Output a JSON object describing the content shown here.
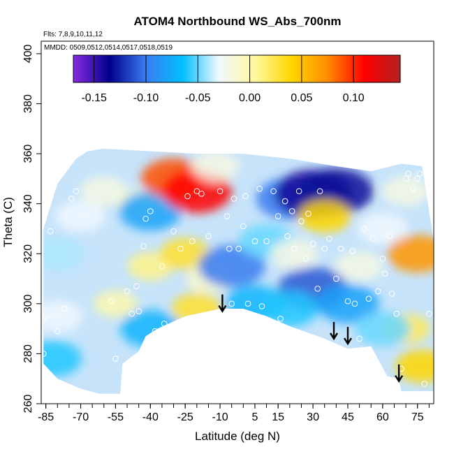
{
  "chart_data": {
    "type": "heatmap",
    "title": "ATOM4 Northbound WS_Abs_700nm",
    "annotations": [
      "Flts: 7,8,9,10,11,12",
      "MMDD: 0509,0512,0514,0517,0518,0519"
    ],
    "xlabel": "Latitude (deg N)",
    "ylabel": "Theta (C)",
    "xlim": [
      -87,
      82
    ],
    "ylim": [
      260,
      405
    ],
    "x_ticks": [
      -85,
      -70,
      -55,
      -40,
      -25,
      -10,
      5,
      15,
      30,
      45,
      60,
      75
    ],
    "y_ticks": [
      260,
      280,
      300,
      320,
      340,
      360,
      380,
      400
    ],
    "colorbar": {
      "range": [
        -0.17,
        0.145
      ],
      "ticks": [
        -0.15,
        -0.1,
        -0.05,
        0.0,
        0.05,
        0.1
      ],
      "tick_labels": [
        "-0.15",
        "-0.10",
        "-0.05",
        "0.00",
        "0.05",
        "0.10"
      ],
      "colors": [
        "#8a2be2",
        "#00008b",
        "#3a7cf0",
        "#00bfff",
        "#f0f8ff",
        "#fff8a0",
        "#ffd700",
        "#ff8c00",
        "#ff0000",
        "#b22222"
      ]
    },
    "field": [
      {
        "lat": -60,
        "theta": 345,
        "value": -0.02
      },
      {
        "lat": -70,
        "theta": 335,
        "value": -0.03
      },
      {
        "lat": -80,
        "theta": 320,
        "value": -0.04
      },
      {
        "lat": -80,
        "theta": 295,
        "value": -0.03
      },
      {
        "lat": -82,
        "theta": 278,
        "value": -0.06
      },
      {
        "lat": -55,
        "theta": 300,
        "value": 0.0
      },
      {
        "lat": -45,
        "theta": 340,
        "value": -0.01
      },
      {
        "lat": -40,
        "theta": 337,
        "value": -0.08
      },
      {
        "lat": -40,
        "theta": 315,
        "value": 0.01
      },
      {
        "lat": -40,
        "theta": 290,
        "value": -0.07
      },
      {
        "lat": -30,
        "theta": 350,
        "value": 0.09
      },
      {
        "lat": -20,
        "theta": 345,
        "value": 0.11
      },
      {
        "lat": -12,
        "theta": 355,
        "value": -0.02
      },
      {
        "lat": -25,
        "theta": 320,
        "value": 0.03
      },
      {
        "lat": -15,
        "theta": 310,
        "value": -0.01
      },
      {
        "lat": -5,
        "theta": 315,
        "value": -0.1
      },
      {
        "lat": 5,
        "theta": 300,
        "value": -0.07
      },
      {
        "lat": 10,
        "theta": 325,
        "value": -0.05
      },
      {
        "lat": 20,
        "theta": 342,
        "value": -0.1
      },
      {
        "lat": 30,
        "theta": 344,
        "value": -0.14
      },
      {
        "lat": 40,
        "theta": 345,
        "value": -0.13
      },
      {
        "lat": 35,
        "theta": 335,
        "value": 0.04
      },
      {
        "lat": 22,
        "theta": 320,
        "value": -0.02
      },
      {
        "lat": 30,
        "theta": 306,
        "value": -0.11
      },
      {
        "lat": 45,
        "theta": 300,
        "value": -0.08
      },
      {
        "lat": 50,
        "theta": 315,
        "value": -0.02
      },
      {
        "lat": 60,
        "theta": 330,
        "value": -0.03
      },
      {
        "lat": 70,
        "theta": 345,
        "value": -0.02
      },
      {
        "lat": 75,
        "theta": 320,
        "value": 0.07
      },
      {
        "lat": 70,
        "theta": 290,
        "value": 0.02
      },
      {
        "lat": 77,
        "theta": 275,
        "value": 0.04
      },
      {
        "lat": 60,
        "theta": 290,
        "value": -0.05
      },
      {
        "lat": 20,
        "theta": 298,
        "value": -0.06
      },
      {
        "lat": -20,
        "theta": 298,
        "value": 0.03
      }
    ],
    "observations": [
      {
        "lat": -86,
        "theta": 294
      },
      {
        "lat": -86,
        "theta": 280
      },
      {
        "lat": -83,
        "theta": 329
      },
      {
        "lat": -80,
        "theta": 289
      },
      {
        "lat": -77,
        "theta": 298
      },
      {
        "lat": -74,
        "theta": 342
      },
      {
        "lat": -72,
        "theta": 345
      },
      {
        "lat": -57,
        "theta": 301
      },
      {
        "lat": -55,
        "theta": 278
      },
      {
        "lat": -50,
        "theta": 305
      },
      {
        "lat": -48,
        "theta": 296
      },
      {
        "lat": -46,
        "theta": 307
      },
      {
        "lat": -45,
        "theta": 297
      },
      {
        "lat": -43,
        "theta": 323
      },
      {
        "lat": -42,
        "theta": 334
      },
      {
        "lat": -40,
        "theta": 337
      },
      {
        "lat": -38,
        "theta": 289
      },
      {
        "lat": -35,
        "theta": 315
      },
      {
        "lat": -34,
        "theta": 292
      },
      {
        "lat": -30,
        "theta": 329
      },
      {
        "lat": -27,
        "theta": 322
      },
      {
        "lat": -24,
        "theta": 343
      },
      {
        "lat": -22,
        "theta": 325
      },
      {
        "lat": -20,
        "theta": 345
      },
      {
        "lat": -18,
        "theta": 344
      },
      {
        "lat": -15,
        "theta": 327
      },
      {
        "lat": -10,
        "theta": 345
      },
      {
        "lat": -7,
        "theta": 335
      },
      {
        "lat": -6,
        "theta": 322
      },
      {
        "lat": -5,
        "theta": 300
      },
      {
        "lat": -4,
        "theta": 342
      },
      {
        "lat": -2,
        "theta": 322
      },
      {
        "lat": 0,
        "theta": 331
      },
      {
        "lat": 1,
        "theta": 343
      },
      {
        "lat": 2,
        "theta": 300
      },
      {
        "lat": 5,
        "theta": 325
      },
      {
        "lat": 7,
        "theta": 346
      },
      {
        "lat": 8,
        "theta": 299
      },
      {
        "lat": 10,
        "theta": 325
      },
      {
        "lat": 13,
        "theta": 345
      },
      {
        "lat": 15,
        "theta": 335
      },
      {
        "lat": 16,
        "theta": 294
      },
      {
        "lat": 18,
        "theta": 341
      },
      {
        "lat": 19,
        "theta": 327
      },
      {
        "lat": 21,
        "theta": 337
      },
      {
        "lat": 22,
        "theta": 322
      },
      {
        "lat": 24,
        "theta": 345
      },
      {
        "lat": 25,
        "theta": 333
      },
      {
        "lat": 27,
        "theta": 318
      },
      {
        "lat": 28,
        "theta": 336
      },
      {
        "lat": 30,
        "theta": 324
      },
      {
        "lat": 32,
        "theta": 306
      },
      {
        "lat": 33,
        "theta": 345
      },
      {
        "lat": 35,
        "theta": 322
      },
      {
        "lat": 37,
        "theta": 326
      },
      {
        "lat": 40,
        "theta": 310
      },
      {
        "lat": 42,
        "theta": 322
      },
      {
        "lat": 45,
        "theta": 301
      },
      {
        "lat": 47,
        "theta": 321
      },
      {
        "lat": 48,
        "theta": 300
      },
      {
        "lat": 50,
        "theta": 286
      },
      {
        "lat": 52,
        "theta": 330
      },
      {
        "lat": 54,
        "theta": 302
      },
      {
        "lat": 56,
        "theta": 326
      },
      {
        "lat": 58,
        "theta": 305
      },
      {
        "lat": 60,
        "theta": 318
      },
      {
        "lat": 61,
        "theta": 312
      },
      {
        "lat": 63,
        "theta": 327
      },
      {
        "lat": 64,
        "theta": 304
      },
      {
        "lat": 66,
        "theta": 296
      },
      {
        "lat": 68,
        "theta": 274
      },
      {
        "lat": 70,
        "theta": 350
      },
      {
        "lat": 71,
        "theta": 352
      },
      {
        "lat": 73,
        "theta": 346
      },
      {
        "lat": 75,
        "theta": 350
      },
      {
        "lat": 76,
        "theta": 352
      },
      {
        "lat": 78,
        "theta": 268
      },
      {
        "lat": 80,
        "theta": 296
      }
    ],
    "arrows": [
      {
        "lat": -9,
        "theta": 297
      },
      {
        "lat": 39,
        "theta": 286
      },
      {
        "lat": 45,
        "theta": 284
      },
      {
        "lat": 67,
        "theta": 269
      }
    ]
  }
}
